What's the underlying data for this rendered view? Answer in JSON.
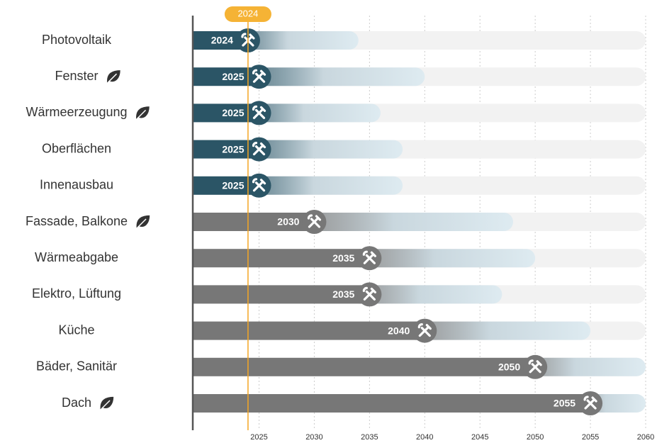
{
  "chart_data": {
    "type": "timeline",
    "categories": [
      "Photovoltaik",
      "Fenster",
      "Wärmeerzeugung",
      "Oberflächen",
      "Innenausbau",
      "Fassade, Balkone",
      "Wärmeabgabe",
      "Elektro, Lüftung",
      "Küche",
      "Bäder, Sanitär",
      "Dach"
    ],
    "values": [
      2024,
      2025,
      2025,
      2025,
      2025,
      2030,
      2035,
      2035,
      2040,
      2050,
      2055
    ],
    "range_end": [
      2034,
      2040,
      2036,
      2038,
      2038,
      2048,
      2050,
      2047,
      2055,
      2060,
      2060
    ],
    "colors": [
      "#2b5566",
      "#2b5566",
      "#2b5566",
      "#2b5566",
      "#2b5566",
      "#777777",
      "#777777",
      "#777777",
      "#777777",
      "#777777",
      "#777777"
    ],
    "eco": [
      false,
      true,
      true,
      false,
      false,
      true,
      false,
      false,
      false,
      false,
      true
    ],
    "current_year": 2024,
    "xlim": [
      2019,
      2060
    ],
    "xticks": [
      2025,
      2030,
      2035,
      2040,
      2045,
      2050,
      2055,
      2060
    ],
    "grid": true
  }
}
